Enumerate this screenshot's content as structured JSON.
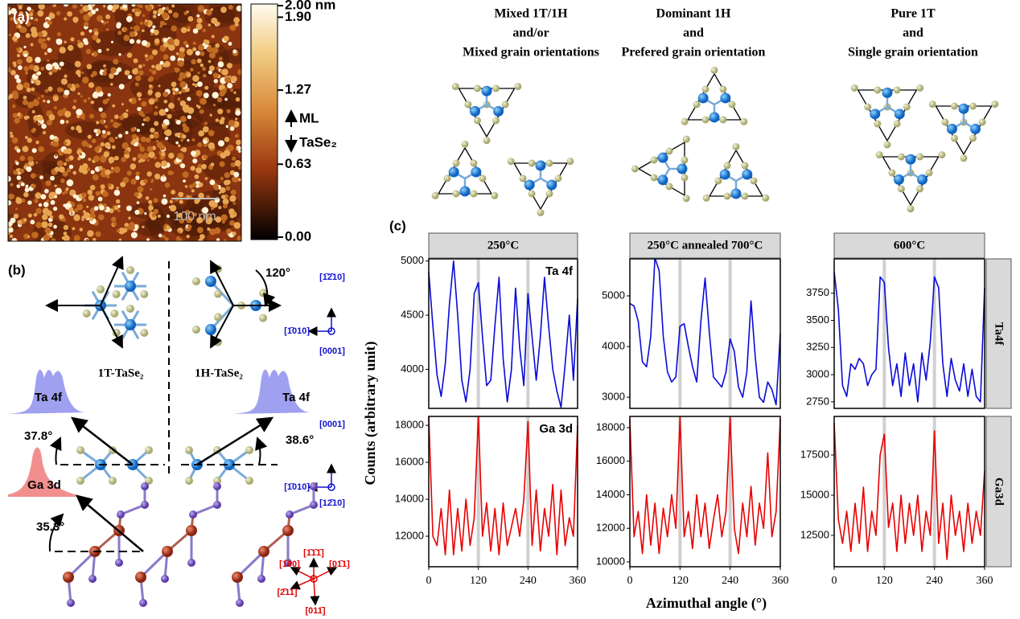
{
  "figure": {
    "panel_a": "(a)",
    "panel_b": "(b)",
    "panel_c": "(c)",
    "y_label": "Counts (arbitrary unit)",
    "x_label": "Azimuthal angle (°)"
  },
  "afm": {
    "scale_bar": "100 nm",
    "annotation_1": "ML",
    "annotation_2": "TaSe₂",
    "colorbar": {
      "ylim": [
        0,
        2.0
      ],
      "yticks": [
        {
          "value": 0,
          "label": "0.00"
        },
        {
          "value": 0.63,
          "label": "0.63"
        },
        {
          "value": 1.27,
          "label": "1.27"
        },
        {
          "value": 1.9,
          "label": "1.90"
        },
        {
          "value": 2.0,
          "label": "2.00 nm"
        }
      ]
    }
  },
  "structures": {
    "angle_top": "120°",
    "dir_1": "[1̄2̄10]",
    "dir_2": "[1̄010]",
    "dir_3": "[0001]",
    "label_1t": "1T-TaSe₂",
    "label_1h": "1H-TaSe₂",
    "ta_left": "Ta 4f",
    "ta_right": "Ta 4f",
    "angle_left": "37.8°",
    "angle_right": "38.6°",
    "dir_4": "[0001]",
    "dir_5": "[1̄010]",
    "dir_6": "[12̄10]",
    "ga": "Ga 3d",
    "angle_ga": "35.3°",
    "dir_7": "[1̄00]",
    "dir_8": "[1̄1̄1̄]",
    "dir_9": "[01̄1]",
    "dir_10": "[2̄11]",
    "dir_11": "[011̄]"
  },
  "headings": [
    [
      "Mixed 1T/1H",
      "and/or",
      "Mixed grain orientations"
    ],
    [
      "Dominant 1H",
      "and",
      "Prefered grain orientation"
    ],
    [
      "Pure 1T",
      "and",
      "Single grain orientation"
    ]
  ],
  "chart_data": [
    {
      "type": "line",
      "strip_title": "250°C",
      "annotation": "Ta 4f",
      "x": [
        0,
        10,
        20,
        30,
        40,
        50,
        60,
        70,
        80,
        90,
        100,
        110,
        120,
        130,
        140,
        150,
        160,
        170,
        180,
        190,
        200,
        210,
        220,
        230,
        240,
        250,
        260,
        270,
        280,
        290,
        300,
        310,
        320,
        330,
        340,
        350,
        360
      ],
      "series": [
        {
          "color": "#0a0ad8",
          "values": [
            4900,
            4400,
            3950,
            3750,
            4050,
            4600,
            5000,
            4500,
            3900,
            3700,
            4000,
            4700,
            4800,
            4300,
            3850,
            3900,
            4400,
            4850,
            4100,
            3700,
            4000,
            4750,
            4200,
            3850,
            4700,
            4300,
            3900,
            4300,
            4850,
            4400,
            4000,
            3800,
            3650,
            4050,
            4500,
            3900,
            4650
          ]
        }
      ],
      "xlim": [
        0,
        360
      ],
      "ylim": [
        3640,
        5020
      ],
      "yticks": [
        4000,
        4500,
        5000
      ],
      "vlines": [
        120,
        240
      ]
    },
    {
      "type": "line",
      "strip_title": "250°C annealed 700°C",
      "x": [
        0,
        10,
        20,
        30,
        40,
        50,
        60,
        70,
        80,
        90,
        100,
        110,
        120,
        130,
        140,
        150,
        160,
        170,
        180,
        190,
        200,
        210,
        220,
        230,
        240,
        250,
        260,
        270,
        280,
        290,
        300,
        310,
        320,
        330,
        340,
        350,
        360
      ],
      "series": [
        {
          "color": "#0a0ad8",
          "values": [
            4850,
            4800,
            4500,
            3700,
            3600,
            4200,
            5750,
            5500,
            4200,
            3500,
            3300,
            3400,
            4400,
            4450,
            4000,
            3600,
            3300,
            4500,
            5350,
            4300,
            3400,
            3300,
            3200,
            3500,
            4150,
            3900,
            3200,
            3000,
            3500,
            4900,
            3800,
            3000,
            2900,
            3300,
            3150,
            2850,
            4250
          ]
        }
      ],
      "xlim": [
        0,
        360
      ],
      "ylim": [
        2780,
        5730
      ],
      "yticks": [
        3000,
        4000,
        5000
      ],
      "vlines": [
        120,
        240
      ]
    },
    {
      "type": "line",
      "strip_title": "600°C",
      "strip_right": "Ta4f",
      "x": [
        0,
        10,
        20,
        30,
        40,
        50,
        60,
        70,
        80,
        90,
        100,
        110,
        120,
        130,
        140,
        150,
        160,
        170,
        180,
        190,
        200,
        210,
        220,
        230,
        240,
        250,
        260,
        270,
        280,
        290,
        300,
        310,
        320,
        330,
        340,
        350,
        360
      ],
      "series": [
        {
          "color": "#0a0ad8",
          "values": [
            3950,
            3600,
            2900,
            2800,
            3100,
            3050,
            3150,
            3100,
            2900,
            3000,
            3050,
            3900,
            3850,
            3250,
            2900,
            3100,
            2800,
            3200,
            2900,
            3100,
            2750,
            3200,
            2950,
            3300,
            3900,
            3800,
            3100,
            2800,
            3150,
            2950,
            2850,
            3100,
            2800,
            3050,
            2800,
            2750,
            3800
          ]
        }
      ],
      "xlim": [
        0,
        360
      ],
      "ylim": [
        2690,
        4066
      ],
      "yticks": [
        2750,
        3000,
        3250,
        3500,
        3750
      ],
      "vlines": [
        120,
        240
      ]
    },
    {
      "type": "line",
      "annotation": "Ga 3d",
      "x": [
        0,
        10,
        20,
        30,
        40,
        50,
        60,
        70,
        80,
        90,
        100,
        110,
        120,
        130,
        140,
        150,
        160,
        170,
        180,
        190,
        200,
        210,
        220,
        230,
        240,
        250,
        260,
        270,
        280,
        290,
        300,
        310,
        320,
        330,
        340,
        350,
        360
      ],
      "series": [
        {
          "color": "#e80000",
          "values": [
            18500,
            12000,
            11500,
            13500,
            11000,
            14500,
            11000,
            13500,
            11200,
            14000,
            11500,
            13000,
            18500,
            12000,
            13800,
            11200,
            13500,
            11000,
            13800,
            11500,
            12500,
            13500,
            12000,
            14000,
            18200,
            11500,
            14500,
            11200,
            13500,
            12000,
            14800,
            11000,
            14500,
            11500,
            13000,
            12000,
            18000
          ]
        }
      ],
      "xlim": [
        0,
        360
      ],
      "ylim": [
        10350,
        18480
      ],
      "yticks": [
        12000,
        14000,
        16000,
        18000
      ],
      "xticks": [
        0,
        120,
        240,
        360
      ],
      "vlines": [
        120,
        240
      ]
    },
    {
      "type": "line",
      "x": [
        0,
        10,
        20,
        30,
        40,
        50,
        60,
        70,
        80,
        90,
        100,
        110,
        120,
        130,
        140,
        150,
        160,
        170,
        180,
        190,
        200,
        210,
        220,
        230,
        240,
        250,
        260,
        270,
        280,
        290,
        300,
        310,
        320,
        330,
        340,
        350,
        360
      ],
      "series": [
        {
          "color": "#e80000",
          "values": [
            18500,
            11500,
            13000,
            10500,
            14000,
            11000,
            13500,
            10500,
            13200,
            11500,
            14000,
            12000,
            18600,
            11500,
            13000,
            10800,
            14000,
            11500,
            13500,
            10800,
            12500,
            14000,
            11500,
            13000,
            18600,
            12000,
            10500,
            13500,
            11500,
            14500,
            11000,
            13500,
            12000,
            16500,
            11500,
            13000,
            18500
          ]
        }
      ],
      "xlim": [
        0,
        360
      ],
      "ylim": [
        9710,
        18670
      ],
      "yticks": [
        10000,
        12000,
        14000,
        16000,
        18000
      ],
      "xticks": [
        0,
        120,
        240,
        360
      ],
      "vlines": [
        120,
        240
      ]
    },
    {
      "type": "line",
      "strip_right": "Ga3d",
      "x": [
        0,
        10,
        20,
        30,
        40,
        50,
        60,
        70,
        80,
        90,
        100,
        110,
        120,
        130,
        140,
        150,
        160,
        170,
        180,
        190,
        200,
        210,
        220,
        230,
        240,
        250,
        260,
        270,
        280,
        290,
        300,
        310,
        320,
        330,
        340,
        350,
        360
      ],
      "series": [
        {
          "color": "#e80000",
          "values": [
            19500,
            13500,
            12000,
            14000,
            11500,
            14500,
            12000,
            15500,
            11500,
            14000,
            12500,
            17500,
            18800,
            13000,
            14500,
            11500,
            15000,
            12000,
            14500,
            12500,
            15000,
            11500,
            14000,
            12500,
            19000,
            12000,
            14500,
            11000,
            15000,
            12500,
            14000,
            11500,
            14500,
            12000,
            14000,
            12500,
            16500
          ]
        }
      ],
      "xlim": [
        0,
        360
      ],
      "ylim": [
        10550,
        19900
      ],
      "yticks": [
        12500,
        15000,
        17500
      ],
      "xticks": [
        0,
        120,
        240,
        360
      ],
      "vlines": [
        120,
        240
      ]
    }
  ]
}
